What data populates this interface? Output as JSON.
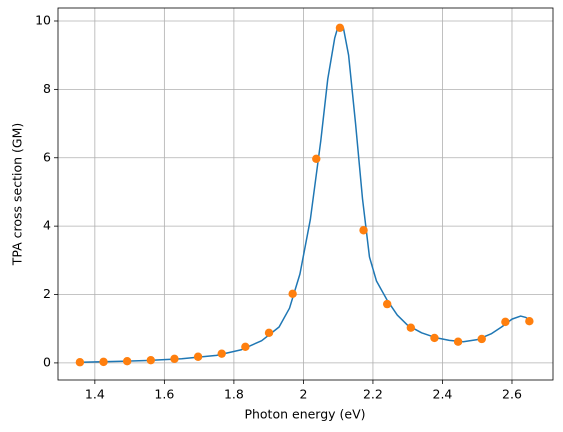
{
  "chart_data": {
    "type": "line",
    "xlabel": "Photon energy (eV)",
    "ylabel": "TPA cross section (GM)",
    "xlim": [
      1.294,
      2.718
    ],
    "ylim": [
      -0.5,
      10.38
    ],
    "xticks": [
      1.4,
      1.6,
      1.8,
      2.0,
      2.2,
      2.4,
      2.6
    ],
    "yticks": [
      0,
      2,
      4,
      6,
      8,
      10
    ],
    "grid": true,
    "series": [
      {
        "type": "line",
        "color": "#1f77b4",
        "x": [
          1.36,
          1.45,
          1.55,
          1.65,
          1.75,
          1.82,
          1.88,
          1.93,
          1.96,
          1.99,
          2.02,
          2.05,
          2.07,
          2.09,
          2.1,
          2.115,
          2.13,
          2.15,
          2.17,
          2.19,
          2.21,
          2.24,
          2.27,
          2.3,
          2.34,
          2.38,
          2.42,
          2.46,
          2.5,
          2.54,
          2.57,
          2.6,
          2.625,
          2.64,
          2.652
        ],
        "values": [
          0.02,
          0.04,
          0.07,
          0.12,
          0.22,
          0.38,
          0.65,
          1.05,
          1.6,
          2.6,
          4.2,
          6.5,
          8.3,
          9.5,
          9.85,
          9.8,
          9.0,
          7.0,
          4.8,
          3.1,
          2.4,
          1.85,
          1.4,
          1.1,
          0.88,
          0.74,
          0.66,
          0.62,
          0.68,
          0.85,
          1.05,
          1.28,
          1.37,
          1.33,
          1.22
        ]
      },
      {
        "type": "scatter",
        "color": "#ff7f0e",
        "x": [
          1.357,
          1.425,
          1.493,
          1.561,
          1.629,
          1.697,
          1.765,
          1.833,
          1.901,
          1.969,
          2.037,
          2.105,
          2.173,
          2.241,
          2.309,
          2.377,
          2.445,
          2.513,
          2.581,
          2.65
        ],
        "values": [
          0.02,
          0.03,
          0.05,
          0.08,
          0.12,
          0.18,
          0.27,
          0.47,
          0.88,
          2.02,
          5.97,
          9.8,
          3.88,
          1.72,
          1.03,
          0.73,
          0.62,
          0.7,
          1.2,
          1.22
        ]
      }
    ]
  }
}
